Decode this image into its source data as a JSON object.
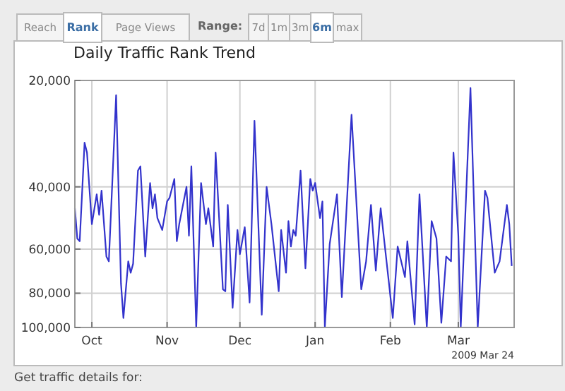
{
  "chart_data": {
    "type": "line",
    "title": "Daily Traffic Rank Trend",
    "annotations": [
      "Reach",
      "Rank",
      "Page Views",
      "Range:",
      "7d",
      "1m",
      "3m",
      "6m",
      "max",
      "2009 Mar 24",
      "Get traffic details for:"
    ],
    "x": [
      "2008-09-24",
      "2008-09-25",
      "2008-09-26",
      "2008-09-28",
      "2008-09-29",
      "2008-10-01",
      "2008-10-03",
      "2008-10-04",
      "2008-10-05",
      "2008-10-07",
      "2008-10-08",
      "2008-10-11",
      "2008-10-13",
      "2008-10-14",
      "2008-10-16",
      "2008-10-17",
      "2008-10-18",
      "2008-10-20",
      "2008-10-21",
      "2008-10-23",
      "2008-10-25",
      "2008-10-26",
      "2008-10-27",
      "2008-10-28",
      "2008-10-30",
      "2008-11-01",
      "2008-11-02",
      "2008-11-04",
      "2008-11-05",
      "2008-11-06",
      "2008-11-09",
      "2008-11-10",
      "2008-11-11",
      "2008-11-13",
      "2008-11-15",
      "2008-11-17",
      "2008-11-18",
      "2008-11-20",
      "2008-11-21",
      "2008-11-24",
      "2008-11-25",
      "2008-11-26",
      "2008-11-28",
      "2008-11-30",
      "2008-12-01",
      "2008-12-03",
      "2008-12-05",
      "2008-12-07",
      "2008-12-10",
      "2008-12-12",
      "2008-12-14",
      "2008-12-17",
      "2008-12-18",
      "2008-12-20",
      "2008-12-21",
      "2008-12-22",
      "2008-12-23",
      "2008-12-24",
      "2008-12-26",
      "2008-12-28",
      "2008-12-30",
      "2008-12-31",
      "2009-01-01",
      "2009-01-03",
      "2009-01-04",
      "2009-01-05",
      "2009-01-07",
      "2009-01-10",
      "2009-01-12",
      "2009-01-16",
      "2009-01-20",
      "2009-01-22",
      "2009-01-24",
      "2009-01-26",
      "2009-01-28",
      "2009-02-02",
      "2009-02-04",
      "2009-02-07",
      "2009-02-08",
      "2009-02-11",
      "2009-02-13",
      "2009-02-16",
      "2009-02-18",
      "2009-02-20",
      "2009-02-22",
      "2009-02-24",
      "2009-02-26",
      "2009-02-27",
      "2009-03-01",
      "2009-03-02",
      "2009-03-06",
      "2009-03-09",
      "2009-03-12",
      "2009-03-13",
      "2009-03-16",
      "2009-03-18",
      "2009-03-21",
      "2009-03-22",
      "2009-03-23"
    ],
    "series": [
      {
        "color": "#3333cc",
        "values": [
          46000,
          56000,
          57000,
          30000,
          32000,
          51000,
          42000,
          48000,
          41000,
          63000,
          65000,
          22000,
          75000,
          94000,
          65000,
          70000,
          66000,
          36000,
          35000,
          63000,
          39000,
          46000,
          42000,
          49000,
          53000,
          44000,
          43000,
          38000,
          57000,
          51000,
          40000,
          55000,
          35000,
          100000,
          39000,
          51000,
          46000,
          59000,
          32000,
          78000,
          79000,
          45000,
          88000,
          53000,
          62000,
          52000,
          85000,
          26000,
          92000,
          40000,
          51000,
          79000,
          53000,
          70000,
          50000,
          59000,
          53000,
          55000,
          36000,
          68000,
          38000,
          41000,
          39000,
          49000,
          44000,
          100000,
          58000,
          42000,
          82000,
          25000,
          78000,
          65000,
          45000,
          69000,
          46000,
          94000,
          59000,
          72000,
          57000,
          98000,
          42000,
          100000,
          50000,
          56000,
          97000,
          63000,
          65000,
          32000,
          55000,
          100000,
          21000,
          100000,
          41000,
          43000,
          70000,
          65000,
          45000,
          51000,
          67000
        ]
      }
    ],
    "xlim": [
      "2008-09-24",
      "2009-03-24"
    ],
    "xticks": [
      {
        "value": "2008-10-01",
        "label": "Oct"
      },
      {
        "value": "2008-11-01",
        "label": "Nov"
      },
      {
        "value": "2008-12-01",
        "label": "Dec"
      },
      {
        "value": "2009-01-01",
        "label": "Jan"
      },
      {
        "value": "2009-02-01",
        "label": "Feb"
      },
      {
        "value": "2009-03-01",
        "label": "Mar"
      }
    ],
    "ylim": [
      100000,
      20000
    ],
    "yticks": [
      {
        "value": 20000,
        "label": "20,000"
      },
      {
        "value": 40000,
        "label": "40,000"
      },
      {
        "value": 60000,
        "label": "60,000"
      },
      {
        "value": 80000,
        "label": "80,000"
      },
      {
        "value": 100000,
        "label": "100,000"
      }
    ],
    "log": true,
    "grid": true,
    "line_style": "solid",
    "marker": "none"
  }
}
